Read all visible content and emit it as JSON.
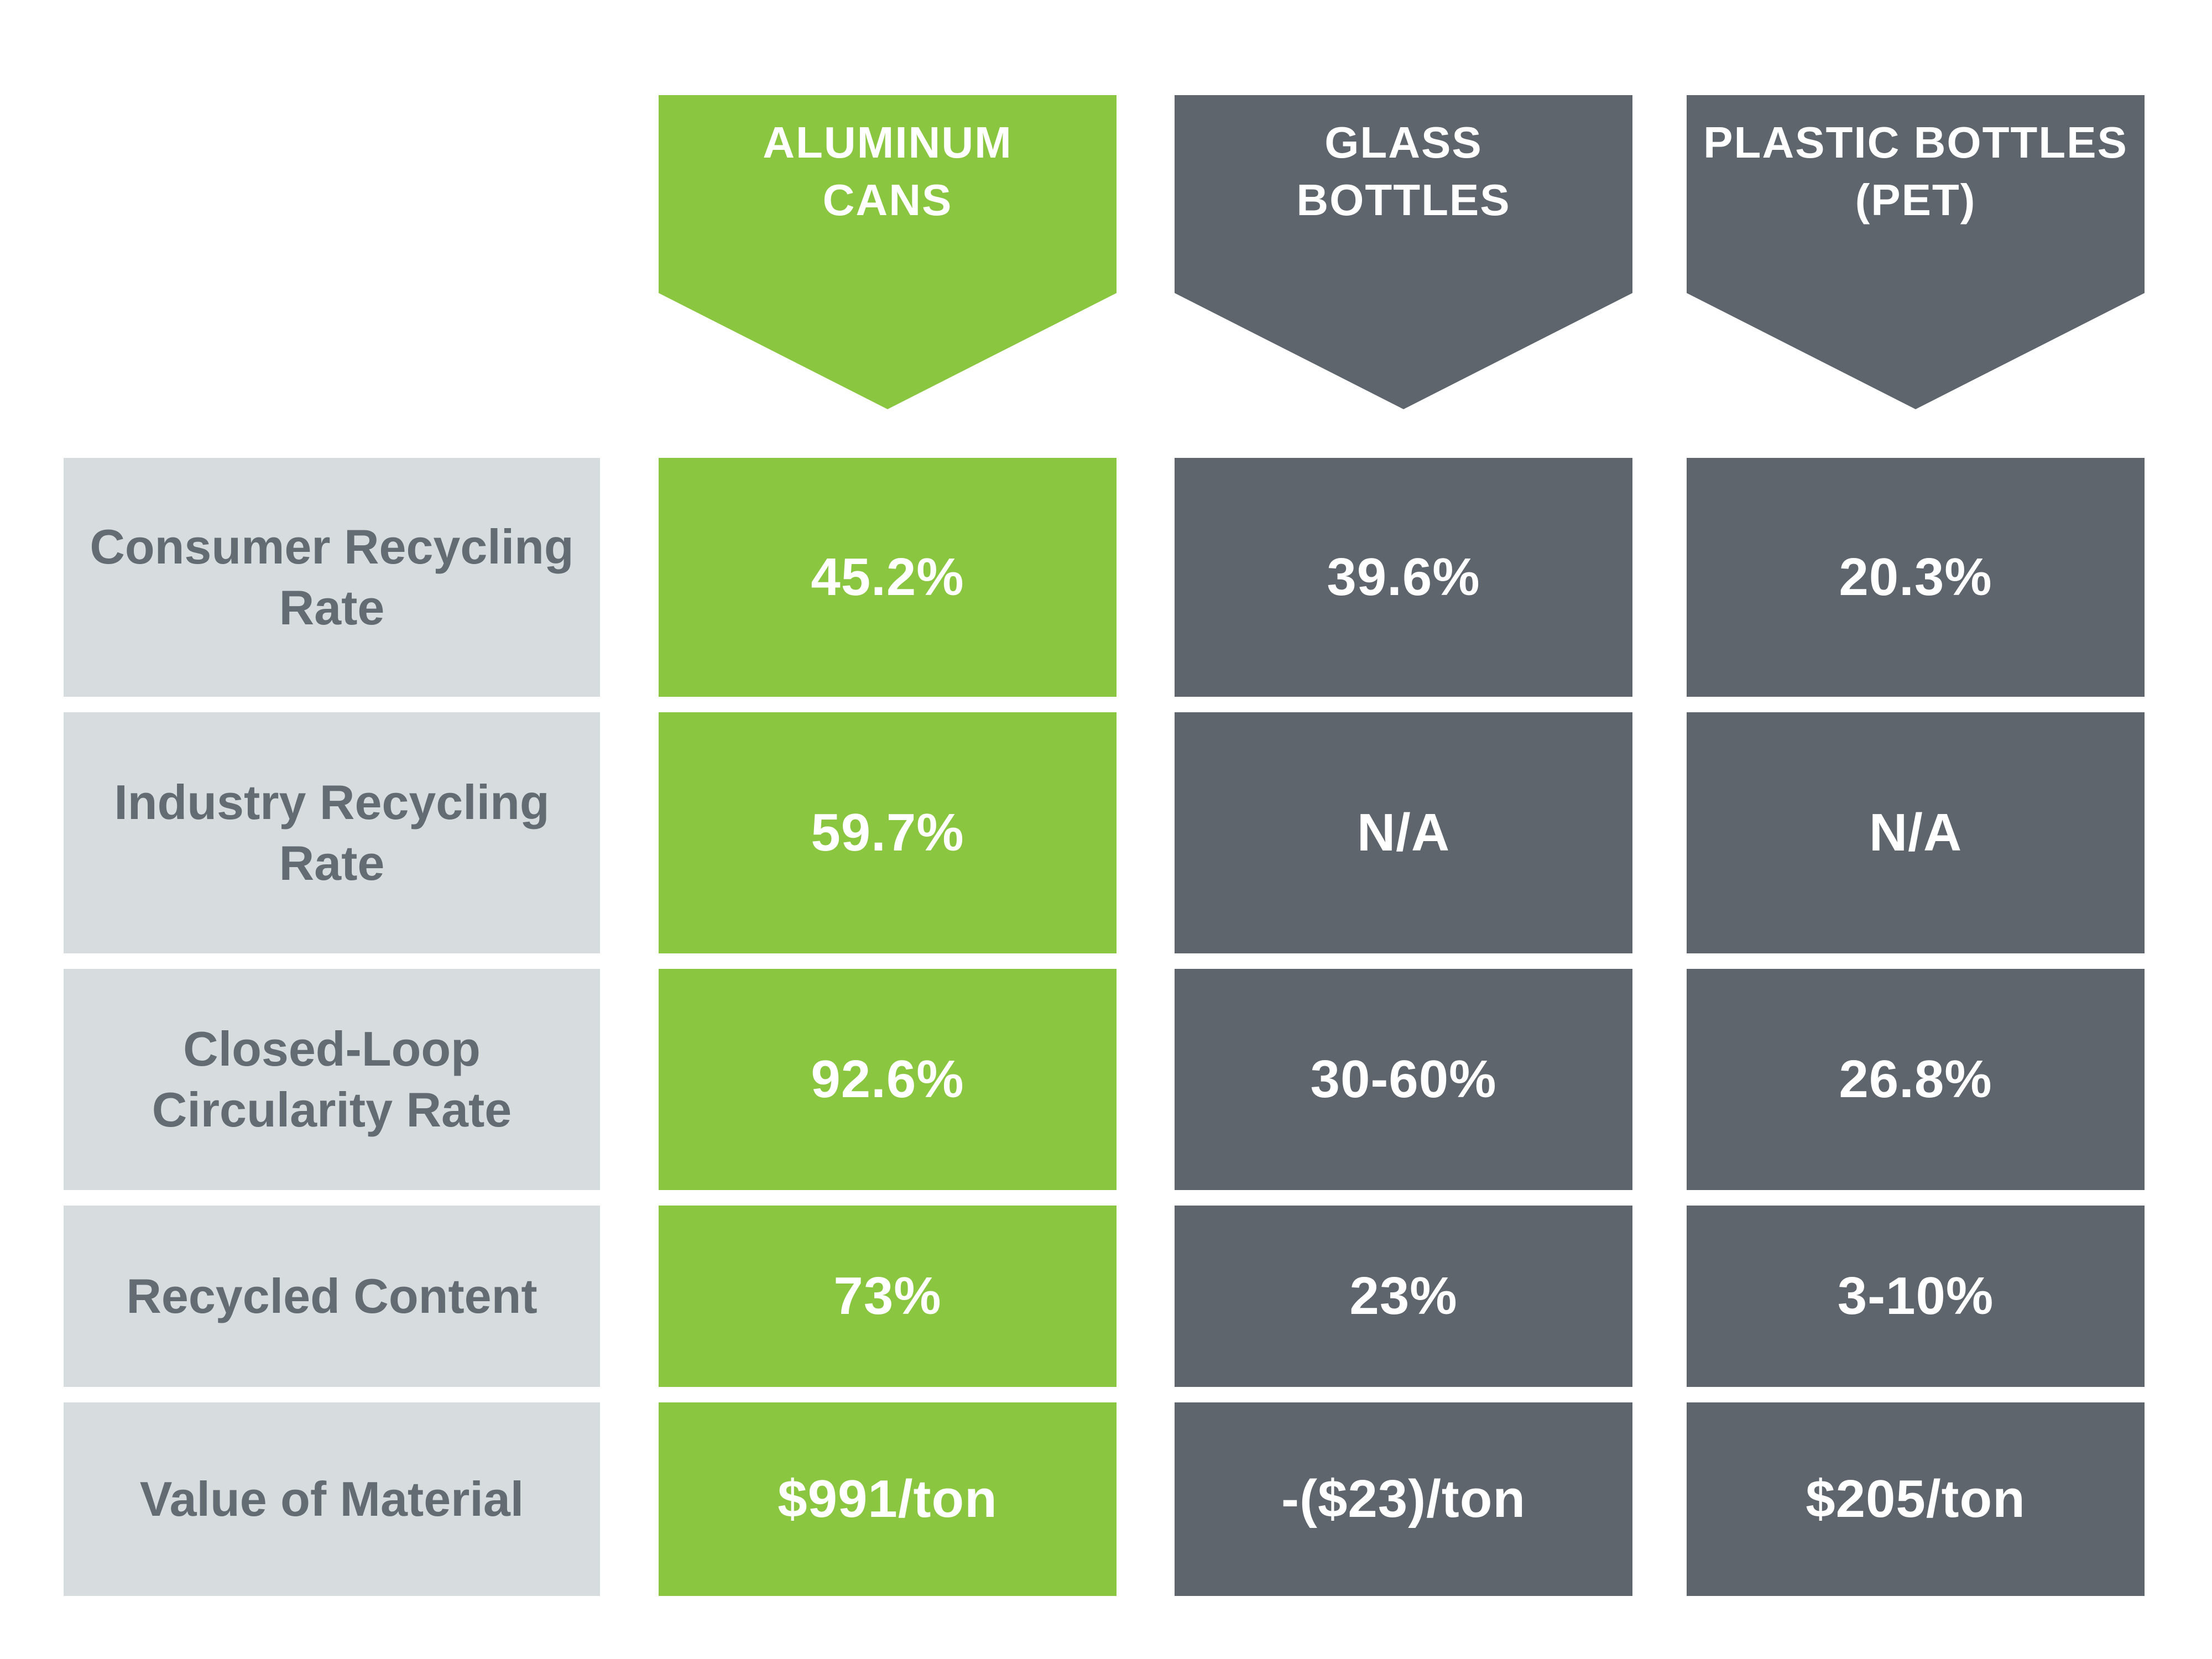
{
  "columns": [
    {
      "id": "aluminum",
      "label": "ALUMINUM\nCANS",
      "color": "#8AC640"
    },
    {
      "id": "glass",
      "label": "GLASS\nBOTTLES",
      "color": "#5E656D"
    },
    {
      "id": "plastic",
      "label": "PLASTIC BOTTLES\n(PET)",
      "color": "#5E656D"
    }
  ],
  "rows": [
    {
      "label": "Consumer Recycling\nRate",
      "values": [
        "45.2%",
        "39.6%",
        "20.3%"
      ]
    },
    {
      "label": "Industry Recycling\nRate",
      "values": [
        "59.7%",
        "N/A",
        "N/A"
      ]
    },
    {
      "label": "Closed-Loop\nCircularity Rate",
      "values": [
        "92.6%",
        "30-60%",
        "26.8%"
      ]
    },
    {
      "label": "Recycled Content",
      "values": [
        "73%",
        "23%",
        "3-10%"
      ]
    },
    {
      "label": "Value of Material",
      "values": [
        "$991/ton",
        "-($23)/ton",
        "$205/ton"
      ]
    }
  ],
  "colors": {
    "green": "#8AC640",
    "dark_gray": "#5E656D",
    "light_gray": "#D7DCDF",
    "label_text": "#646C73",
    "value_text": "#FFFFFF",
    "background": "#FFFFFF"
  },
  "chart_data": {
    "type": "table",
    "title": "",
    "columns": [
      "ALUMINUM CANS",
      "GLASS BOTTLES",
      "PLASTIC BOTTLES (PET)"
    ],
    "row_headers": [
      "Consumer Recycling Rate",
      "Industry Recycling Rate",
      "Closed-Loop Circularity Rate",
      "Recycled Content",
      "Value of Material"
    ],
    "cells": [
      [
        "45.2%",
        "39.6%",
        "20.3%"
      ],
      [
        "59.7%",
        "N/A",
        "N/A"
      ],
      [
        "92.6%",
        "30-60%",
        "26.8%"
      ],
      [
        "73%",
        "23%",
        "3-10%"
      ],
      [
        "$991/ton",
        "-($23)/ton",
        "$205/ton"
      ]
    ],
    "highlight_column": "ALUMINUM CANS",
    "legend_position": "none",
    "grid": false
  }
}
